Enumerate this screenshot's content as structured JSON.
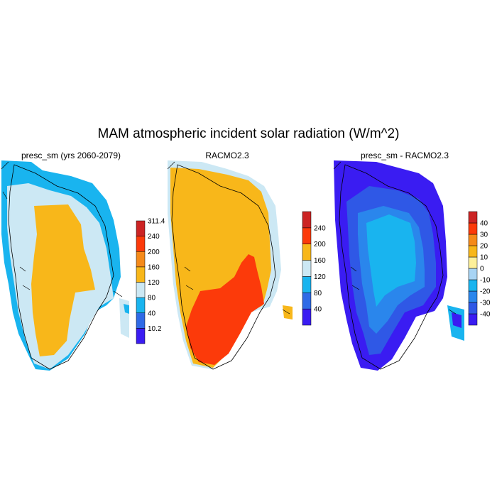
{
  "title": "MAM atmospheric incident solar radiation (W/m^2)",
  "panels": [
    {
      "title": "presc_sm (yrs 2060-2079)",
      "colorbar": {
        "labels": [
          "10.2",
          "40",
          "80",
          "120",
          "160",
          "200",
          "240",
          "311.4"
        ],
        "colors": [
          "#3a1cf2",
          "#2f6ae6",
          "#19b4ef",
          "#cce8f4",
          "#f8b71a",
          "#f58a1a",
          "#fc3a0a",
          "#cc2424"
        ]
      }
    },
    {
      "title": "RACMO2.3",
      "colorbar": {
        "labels": [
          "40",
          "80",
          "120",
          "160",
          "200",
          "240"
        ],
        "colors": [
          "#3a1cf2",
          "#2f6ae6",
          "#19b4ef",
          "#cce8f4",
          "#f8b71a",
          "#fc3a0a",
          "#cc2424"
        ]
      }
    },
    {
      "title": "presc_sm - RACMO2.3",
      "colorbar": {
        "labels": [
          "-40",
          "-30",
          "-20",
          "-10",
          "0",
          "10",
          "20",
          "30",
          "40"
        ],
        "colors": [
          "#3a1cf2",
          "#2f58e6",
          "#2a86ec",
          "#19b4ef",
          "#a8d4f4",
          "#fdf09a",
          "#f8b71a",
          "#f58a1a",
          "#fc3a0a",
          "#cc2424"
        ]
      }
    }
  ]
}
